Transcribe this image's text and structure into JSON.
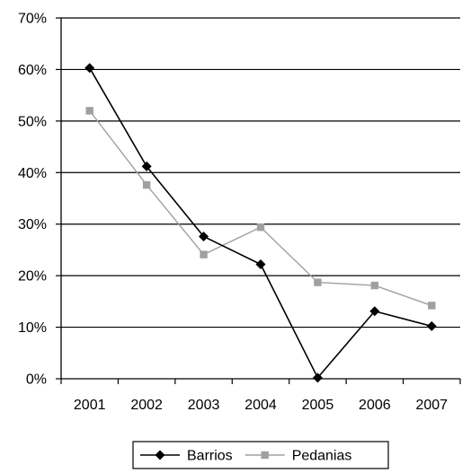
{
  "chart_data": {
    "type": "line",
    "title": "",
    "xlabel": "",
    "ylabel": "",
    "categories": [
      "2001",
      "2002",
      "2003",
      "2004",
      "2005",
      "2006",
      "2007"
    ],
    "ylim": [
      0,
      70
    ],
    "yticks": [
      0,
      10,
      20,
      30,
      40,
      50,
      60,
      70
    ],
    "ytick_labels": [
      "0%",
      "10%",
      "20%",
      "30%",
      "40%",
      "50%",
      "60%",
      "70%"
    ],
    "y_unit": "%",
    "grid": "horizontal",
    "legend_position": "bottom",
    "series": [
      {
        "name": "Barrios",
        "marker": "diamond",
        "color": "#000000",
        "values": [
          60.3,
          41.2,
          27.6,
          22.2,
          0.2,
          13.1,
          10.2
        ]
      },
      {
        "name": "Pedanias",
        "marker": "square",
        "color": "#a0a0a0",
        "values": [
          52.0,
          37.6,
          24.1,
          29.4,
          18.7,
          18.1,
          14.2
        ]
      }
    ]
  }
}
